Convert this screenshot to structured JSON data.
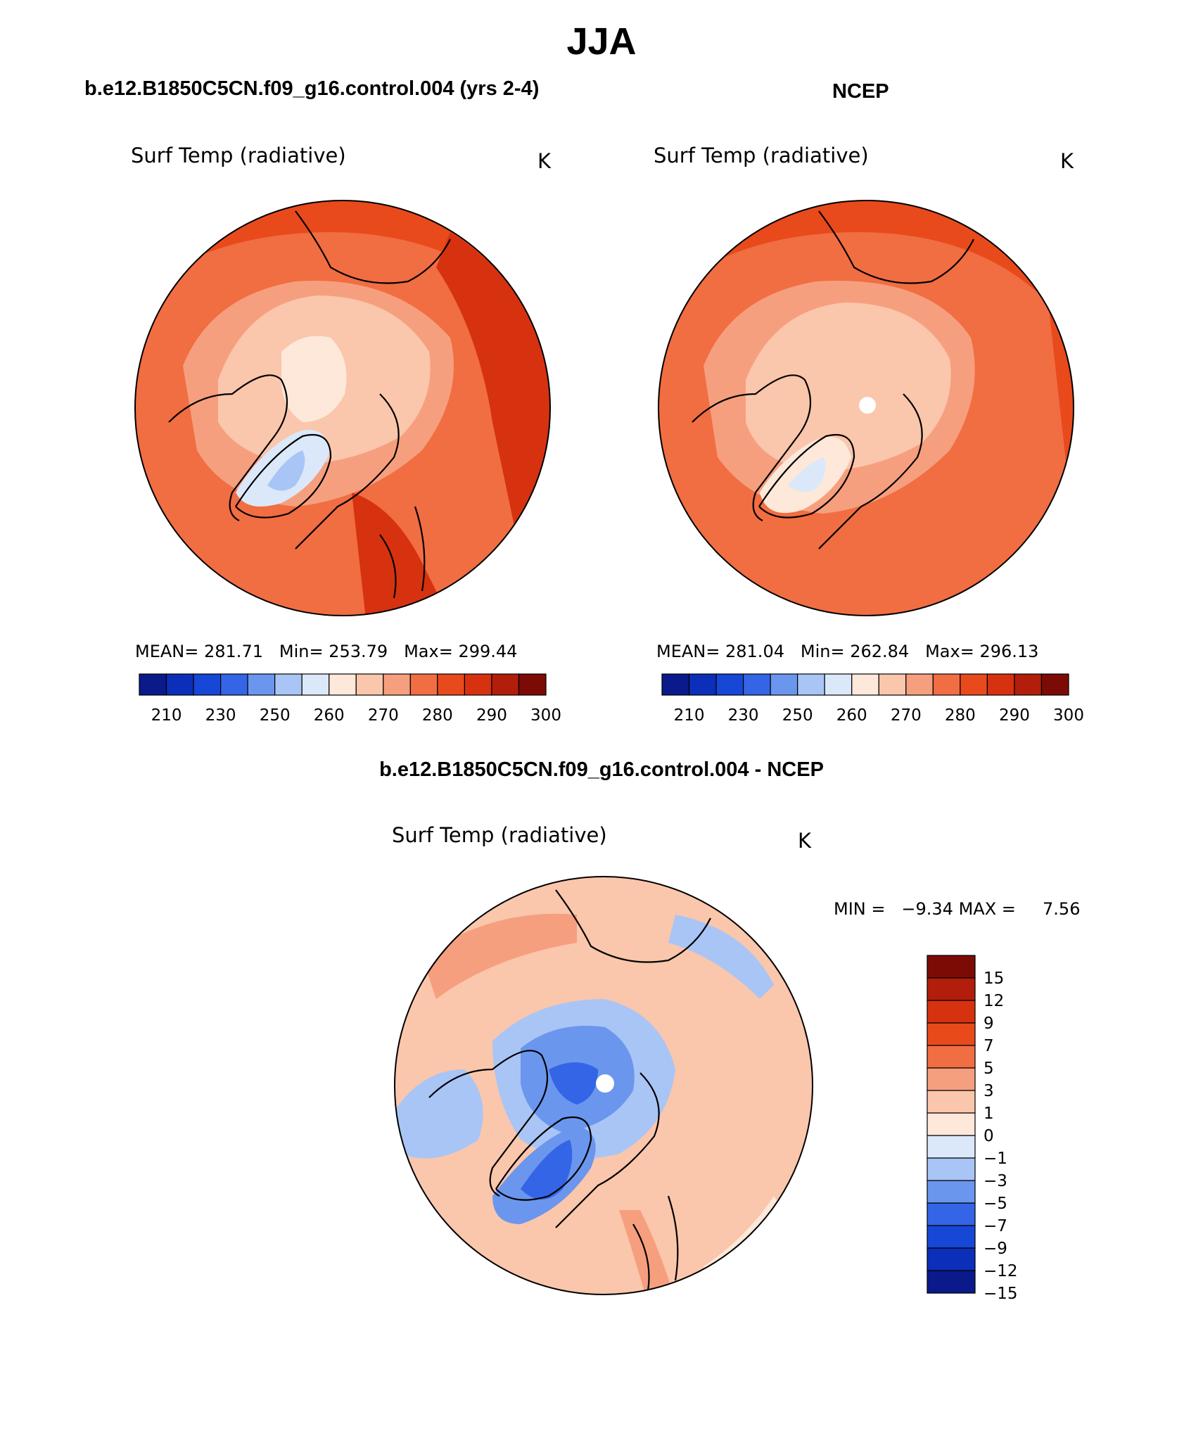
{
  "main_title": "JJA",
  "panels": [
    {
      "title": "b.e12.B1850C5CN.f09_g16.control.004 (yrs 2-4)",
      "variable": "Surf Temp (radiative)",
      "units": "K",
      "stats": {
        "mean_label": "MEAN=",
        "mean": "281.71",
        "min_label": "Min=",
        "min": "253.79",
        "max_label": "Max=",
        "max": "299.44"
      },
      "colorbar": {
        "labels": [
          "210",
          "230",
          "250",
          "260",
          "270",
          "280",
          "290",
          "300"
        ]
      }
    },
    {
      "title": "NCEP",
      "variable": "Surf Temp (radiative)",
      "units": "K",
      "stats": {
        "mean_label": "MEAN=",
        "mean": "281.04",
        "min_label": "Min=",
        "min": "262.84",
        "max_label": "Max=",
        "max": "296.13"
      },
      "colorbar": {
        "labels": [
          "210",
          "230",
          "250",
          "260",
          "270",
          "280",
          "290",
          "300"
        ]
      }
    },
    {
      "title": "b.e12.B1850C5CN.f09_g16.control.004 - NCEP",
      "variable": "Surf Temp (radiative)",
      "units": "K",
      "stats": {
        "min_label": "MIN =",
        "min": "−9.34",
        "max_label": "MAX =",
        "max": "7.56"
      },
      "colorbar": {
        "labels": [
          "15",
          "12",
          "9",
          "7",
          "5",
          "3",
          "1",
          "0",
          "−1",
          "−3",
          "−5",
          "−7",
          "−9",
          "−12",
          "−15"
        ]
      }
    }
  ],
  "colors": {
    "abs_scale": [
      "#0a1a8a",
      "#0b2fb8",
      "#1747d6",
      "#3465e6",
      "#6b96ee",
      "#a9c5f5",
      "#dbe8fa",
      "#fde8da",
      "#fac6ac",
      "#f69f7e",
      "#f16d42",
      "#e84a1c",
      "#d63210",
      "#b31d0b",
      "#7d0b05"
    ],
    "diff_scale_top_to_bottom": [
      "#7d0b05",
      "#b31d0b",
      "#d63210",
      "#e84a1c",
      "#f16d42",
      "#f69f7e",
      "#fac6ac",
      "#fde8da",
      "#dbe8fa",
      "#a9c5f5",
      "#6b96ee",
      "#3465e6",
      "#1747d6",
      "#0b2fb8",
      "#0a1a8a"
    ]
  }
}
